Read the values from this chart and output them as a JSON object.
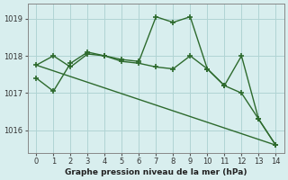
{
  "line1_x": [
    0,
    1,
    2,
    3,
    4,
    5,
    6,
    7,
    8,
    9,
    10,
    11,
    12,
    13,
    14
  ],
  "line1_y": [
    1017.4,
    1017.05,
    1017.8,
    1018.1,
    1018.0,
    1017.85,
    1017.8,
    1017.7,
    1017.65,
    1018.0,
    1017.65,
    1017.2,
    1017.0,
    1016.3,
    1015.6
  ],
  "line2_x": [
    0,
    1,
    2,
    3,
    4,
    5,
    6,
    7,
    8,
    9,
    10,
    11,
    12,
    13,
    14
  ],
  "line2_y": [
    1017.75,
    1018.0,
    1017.7,
    1018.05,
    1018.0,
    1017.9,
    1017.85,
    1019.05,
    1018.9,
    1019.05,
    1017.65,
    1017.2,
    1018.0,
    1016.3,
    1015.6
  ],
  "line3_x": [
    0,
    14
  ],
  "line3_y": [
    1017.75,
    1015.6
  ],
  "color": "#2d6a2d",
  "bg_color": "#d8eeee",
  "grid_color": "#b0d4d4",
  "xlabel": "Graphe pression niveau de la mer (hPa)",
  "xlim": [
    -0.5,
    14.5
  ],
  "ylim": [
    1015.4,
    1019.4
  ],
  "yticks": [
    1016,
    1017,
    1018,
    1019
  ],
  "xticks": [
    0,
    1,
    2,
    3,
    4,
    5,
    6,
    7,
    8,
    9,
    10,
    11,
    12,
    13,
    14
  ],
  "marker": "+",
  "markersize": 5,
  "linewidth": 1.0
}
